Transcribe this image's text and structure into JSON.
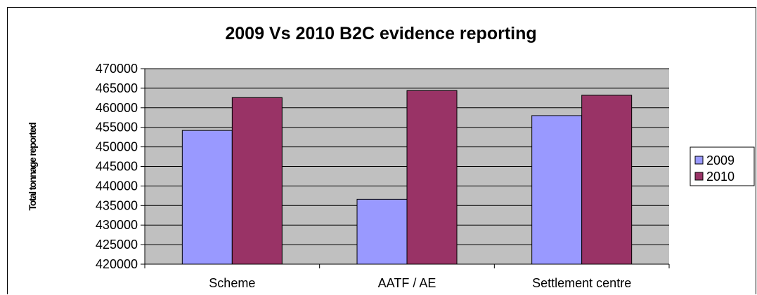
{
  "chart_data": {
    "type": "bar",
    "title": "2009 Vs 2010 B2C evidence reporting",
    "xlabel": "",
    "ylabel": "Total tonnage reported",
    "categories": [
      "Scheme",
      "AATF / AE",
      "Settlement centre"
    ],
    "series": [
      {
        "name": "2009",
        "values": [
          454200,
          436600,
          458000
        ],
        "color": "#9999ff"
      },
      {
        "name": "2010",
        "values": [
          462600,
          464400,
          463200
        ],
        "color": "#993366"
      }
    ],
    "ylim": [
      420000,
      470000
    ],
    "yticks": [
      "420000",
      "425000",
      "430000",
      "435000",
      "440000",
      "445000",
      "450000",
      "455000",
      "460000",
      "465000",
      "470000"
    ],
    "grid": true,
    "legend": "right",
    "plot_background": "#c0c0c0"
  }
}
